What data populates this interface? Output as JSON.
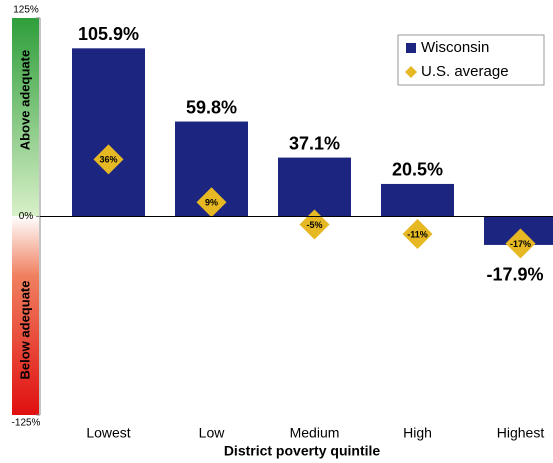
{
  "chart_data": {
    "type": "bar",
    "x_label": "District poverty quintile",
    "annotations": [
      "Above adequate",
      "Below adequate"
    ],
    "categories": [
      "Lowest",
      "Low",
      "Medium",
      "High",
      "Highest"
    ],
    "series": [
      {
        "name": "Wisconsin",
        "color": "#1c2580",
        "marker": "bar",
        "values": [
          105.9,
          59.8,
          37.1,
          20.5,
          -17.9
        ],
        "value_labels": [
          "105.9%",
          "59.8%",
          "37.1%",
          "20.5%",
          "-17.9%"
        ]
      },
      {
        "name": "U.S. average",
        "color": "#e5b824",
        "marker": "diamond",
        "values": [
          36,
          9,
          -5,
          -11,
          -17
        ],
        "value_labels": [
          "36%",
          "9%",
          "-5%",
          "-11%",
          "-17%"
        ]
      }
    ],
    "ylim": [
      -125,
      125
    ],
    "yticks": [
      {
        "value": -125,
        "label": "-125%"
      },
      {
        "value": 0,
        "label": "0%"
      },
      {
        "value": 125,
        "label": "125%"
      }
    ],
    "legend": "top-right"
  }
}
